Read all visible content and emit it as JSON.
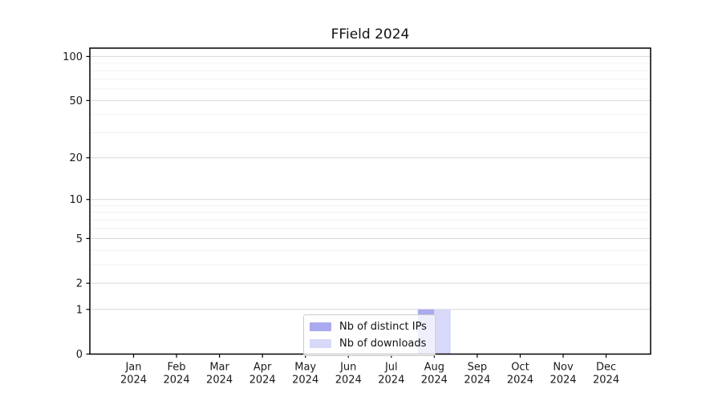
{
  "chart_data": {
    "type": "bar",
    "title": "FField 2024",
    "categories": [
      "Jan 2024",
      "Feb 2024",
      "Mar 2024",
      "Apr 2024",
      "May 2024",
      "Jun 2024",
      "Jul 2024",
      "Aug 2024",
      "Sep 2024",
      "Oct 2024",
      "Nov 2024",
      "Dec 2024"
    ],
    "series": [
      {
        "name": "Nb of distinct IPs",
        "color": "#aaaaee",
        "values": [
          0,
          0,
          0,
          0,
          0,
          0,
          0,
          1,
          0,
          0,
          0,
          0
        ]
      },
      {
        "name": "Nb of downloads",
        "color": "#d8d8f8",
        "values": [
          0,
          0,
          0,
          0,
          0,
          0,
          0,
          1,
          0,
          0,
          0,
          0
        ]
      }
    ],
    "xlabel": "",
    "ylabel": "",
    "yscale": "log1p",
    "ylim": [
      0,
      114
    ],
    "y_tick_labels": [
      "0",
      "1",
      "2",
      "5",
      "10",
      "20",
      "50",
      "100"
    ],
    "y_minor_ticks": [
      3,
      4,
      6,
      7,
      8,
      9,
      30,
      40,
      60,
      70,
      80,
      90
    ],
    "grid": "horizontal-only",
    "legend_position": "lower center",
    "colors": {
      "background": "#ffffff",
      "spine": "#000000",
      "grid_major": "#d7d7d7",
      "grid_minor": "#f0f0f0",
      "text": "#1a1a1a"
    }
  }
}
